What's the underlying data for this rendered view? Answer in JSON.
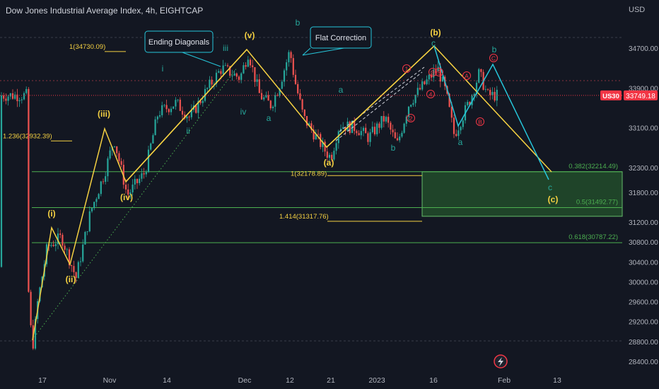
{
  "header": {
    "title": "Dow Jones Industrial Average Index, 4h, EIGHTCAP",
    "currency": "USD"
  },
  "price_tag": {
    "symbol": "US30",
    "value": "33749.18",
    "bg": "#f23645"
  },
  "colors": {
    "up": "#26a69a",
    "down": "#ef5350",
    "yellow": "#f5d142",
    "green": "#4caf50",
    "teal": "#26c6da",
    "red": "#f23645",
    "zone": "#2e7d32"
  },
  "chart_data": {
    "type": "candlestick",
    "title": "Dow Jones Industrial Average Index, 4h, EIGHTCAP",
    "y_ticks": [
      34700,
      33900,
      33100,
      32300,
      31800,
      31200,
      30800,
      30400,
      30000,
      29600,
      29200,
      28800,
      28400
    ],
    "ylim": [
      28250,
      35300
    ],
    "x_ticks": [
      "17",
      "Nov",
      "14",
      "Dec",
      "12",
      "21",
      "2023",
      "16",
      "Feb",
      "13"
    ],
    "price_path": [
      {
        "d": "Oct 10",
        "v": 30300
      },
      {
        "d": "Oct 11",
        "v": 29200
      },
      {
        "d": "Oct 13",
        "v": 28660
      },
      {
        "d": "Oct 14",
        "v": 29400
      },
      {
        "d": "Oct 17",
        "v": 30150
      },
      {
        "d": "Oct 18",
        "v": 30700
      },
      {
        "d": "Oct 21",
        "v": 30900
      },
      {
        "d": "Oct 24",
        "v": 30080
      },
      {
        "d": "Oct 27",
        "v": 31400
      },
      {
        "d": "Oct 30",
        "v": 32200
      },
      {
        "d": "Nov 1",
        "v": 32880
      },
      {
        "d": "Nov 4",
        "v": 31740
      },
      {
        "d": "Nov 8",
        "v": 32200
      },
      {
        "d": "Nov 11",
        "v": 33400
      },
      {
        "d": "Nov 15",
        "v": 33600
      },
      {
        "d": "Nov 18",
        "v": 33300
      },
      {
        "d": "Nov 22",
        "v": 33900
      },
      {
        "d": "Nov 25",
        "v": 34300
      },
      {
        "d": "Nov 29",
        "v": 34100
      },
      {
        "d": "Dec 1",
        "v": 34620
      },
      {
        "d": "Dec 2",
        "v": 34300
      },
      {
        "d": "Dec 4",
        "v": 33750
      },
      {
        "d": "Dec 7",
        "v": 33550
      },
      {
        "d": "Dec 9",
        "v": 33900
      },
      {
        "d": "Dec 12",
        "v": 34650
      },
      {
        "d": "Dec 13",
        "v": 34080
      },
      {
        "d": "Dec 15",
        "v": 33300
      },
      {
        "d": "Dec 20",
        "v": 32600
      },
      {
        "d": "Dec 21",
        "v": 32500
      },
      {
        "d": "Dec 23",
        "v": 33150
      },
      {
        "d": "Dec 27",
        "v": 33100
      },
      {
        "d": "Dec 30",
        "v": 32900
      },
      {
        "d": "Jan 3",
        "v": 33300
      },
      {
        "d": "Jan 6",
        "v": 32750
      },
      {
        "d": "Jan 9",
        "v": 33600
      },
      {
        "d": "Jan 12",
        "v": 33900
      },
      {
        "d": "Jan 16",
        "v": 34300
      },
      {
        "d": "Jan 18",
        "v": 33800
      },
      {
        "d": "Jan 20",
        "v": 32950
      },
      {
        "d": "Jan 24",
        "v": 33700
      },
      {
        "d": "Jan 26",
        "v": 34200
      },
      {
        "d": "Jan 28",
        "v": 33750
      }
    ],
    "levels": [
      {
        "label": "0.382(32214.49)",
        "value": 32214.49,
        "side": "right",
        "color": "#4caf50"
      },
      {
        "label": "0.5(31492.77)",
        "value": 31492.77,
        "side": "right",
        "color": "#4caf50"
      },
      {
        "label": "0.618(30787.22)",
        "value": 30787.22,
        "side": "right",
        "color": "#4caf50"
      },
      {
        "label": "1(34730.09)",
        "value": 34730.09,
        "side": "left",
        "color": "#f5d142"
      },
      {
        "label": "1.236(32932.39)",
        "value": 32932.39,
        "side": "left",
        "color": "#f5d142"
      },
      {
        "label": "1(32178.89)",
        "value": 32178.89,
        "side": "mid",
        "color": "#f5d142"
      },
      {
        "label": "1.414(31317.76)",
        "value": 31317.76,
        "side": "mid",
        "color": "#f5d142"
      }
    ],
    "callouts": [
      "Ending Diagonals",
      "Flat Correction"
    ],
    "wave_labels": [
      {
        "t": "(i)",
        "c": "#f5d142"
      },
      {
        "t": "(ii)",
        "c": "#f5d142"
      },
      {
        "t": "(iii)",
        "c": "#f5d142"
      },
      {
        "t": "(iv)",
        "c": "#f5d142"
      },
      {
        "t": "(v)",
        "c": "#f5d142"
      },
      {
        "t": "(a)",
        "c": "#f5d142"
      },
      {
        "t": "(b)",
        "c": "#f5d142"
      },
      {
        "t": "(c)",
        "c": "#f5d142"
      },
      {
        "t": "i",
        "c": "#26a69a"
      },
      {
        "t": "ii",
        "c": "#26a69a"
      },
      {
        "t": "iii",
        "c": "#26a69a"
      },
      {
        "t": "iv",
        "c": "#26a69a"
      },
      {
        "t": "a",
        "c": "#26a69a"
      },
      {
        "t": "b",
        "c": "#26a69a"
      },
      {
        "t": "c",
        "c": "#26a69a"
      },
      {
        "t": "a",
        "c": "#26a69a"
      },
      {
        "t": "b",
        "c": "#26a69a"
      },
      {
        "t": "a",
        "c": "#26a69a"
      },
      {
        "t": "b",
        "c": "#26a69a"
      },
      {
        "t": "c",
        "c": "#26a69a"
      },
      {
        "t": "1",
        "c": "#f23645"
      },
      {
        "t": "2",
        "c": "#f23645"
      },
      {
        "t": "3",
        "c": "#f23645"
      },
      {
        "t": "4",
        "c": "#f23645"
      },
      {
        "t": "5",
        "c": "#f23645"
      },
      {
        "t": "A",
        "c": "#f23645"
      },
      {
        "t": "B",
        "c": "#f23645"
      },
      {
        "t": "C",
        "c": "#f23645"
      }
    ]
  }
}
